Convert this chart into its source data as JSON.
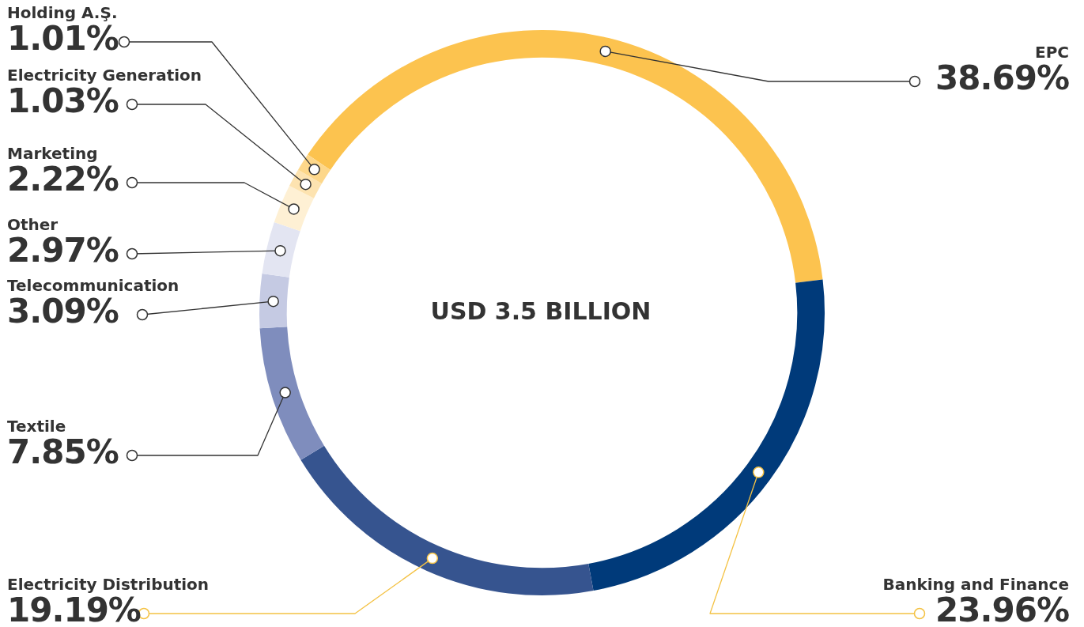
{
  "chart_data": {
    "type": "donut",
    "categories": [
      "EPC",
      "Banking and Finance",
      "Electricity Distribution",
      "Textile",
      "Telecommunication",
      "Other",
      "Marketing",
      "Electricity Generation",
      "Holding A.Ş."
    ],
    "values": [
      38.69,
      23.96,
      19.19,
      7.85,
      3.09,
      2.97,
      2.22,
      1.03,
      1.01
    ],
    "value_labels": [
      "38.69%",
      "23.96%",
      "19.19%",
      "7.85%",
      "3.09%",
      "2.97%",
      "2.22%",
      "1.03%",
      "1.01%"
    ],
    "colors": [
      "#fcc34f",
      "#003a7a",
      "#36548f",
      "#7f8dbd",
      "#c5cae3",
      "#e3e5f2",
      "#fef0d4",
      "#fde3b0",
      "#fdd78a"
    ],
    "annotations": [
      "USD 3.5 BILLION"
    ],
    "legend": false
  }
}
